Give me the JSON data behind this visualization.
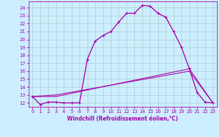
{
  "title": "",
  "xlabel": "Windchill (Refroidissement éolien,°C)",
  "xlim": [
    -0.5,
    23.5
  ],
  "ylim": [
    11.5,
    24.8
  ],
  "xticks": [
    0,
    1,
    2,
    3,
    4,
    5,
    6,
    7,
    8,
    9,
    10,
    11,
    12,
    13,
    14,
    15,
    16,
    17,
    18,
    19,
    20,
    21,
    22,
    23
  ],
  "yticks": [
    12,
    13,
    14,
    15,
    16,
    17,
    18,
    19,
    20,
    21,
    22,
    23,
    24
  ],
  "bg_color": "#cceeff",
  "grid_color": "#aacccc",
  "line_color": "#aa00aa",
  "line1_x": [
    0,
    1,
    2,
    3,
    4,
    5,
    6,
    7,
    8,
    9,
    10,
    11,
    12,
    13,
    14,
    15,
    16,
    17,
    18,
    19,
    20,
    21,
    22,
    23
  ],
  "line1_y": [
    12.8,
    11.8,
    12.1,
    12.1,
    12.0,
    12.0,
    12.0,
    17.5,
    19.8,
    20.5,
    21.0,
    22.2,
    23.3,
    23.3,
    24.3,
    24.2,
    23.3,
    22.8,
    21.0,
    19.0,
    16.3,
    13.3,
    12.1,
    12.0
  ],
  "line2_x": [
    0,
    3,
    20,
    23
  ],
  "line2_y": [
    12.8,
    12.8,
    16.3,
    12.0
  ],
  "line3_x": [
    0,
    3,
    20,
    23
  ],
  "line3_y": [
    12.8,
    13.0,
    16.0,
    12.0
  ],
  "font_size_ticks": 5,
  "font_size_xlabel": 5.5
}
